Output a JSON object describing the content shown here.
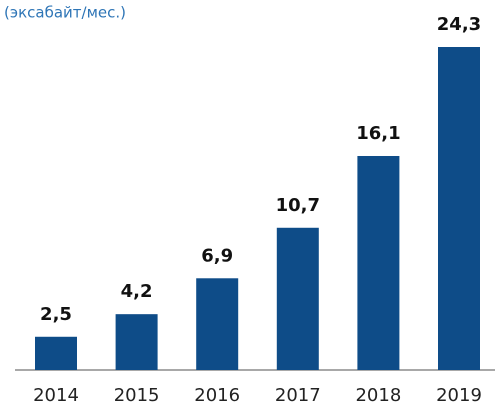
{
  "chart_data": {
    "type": "bar",
    "subtitle": "(эксабайт/мес.)",
    "categories": [
      "2014",
      "2015",
      "2016",
      "2017",
      "2018",
      "2019"
    ],
    "values": [
      2.5,
      4.2,
      6.9,
      10.7,
      16.1,
      24.3
    ],
    "value_labels": [
      "2,5",
      "4,2",
      "6,9",
      "10,7",
      "16,1",
      "24,3"
    ],
    "color": "#0e4c88"
  }
}
